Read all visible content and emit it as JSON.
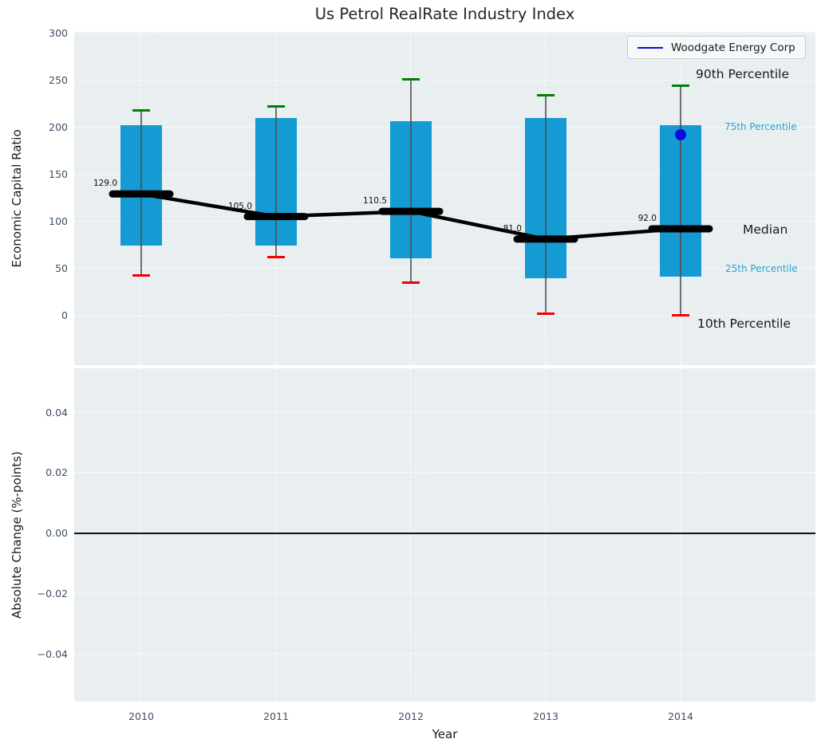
{
  "chart_data": {
    "type": "box",
    "title": "Us Petrol RealRate Industry Index",
    "xlabel": "Year",
    "categories": [
      "2010",
      "2011",
      "2012",
      "2013",
      "2014"
    ],
    "legend": {
      "label": "Woodgate Energy Corp",
      "line_color": "#0a0ae0",
      "position": "upper right"
    },
    "top_panel": {
      "ylabel": "Economic Capital Ratio",
      "yticks": [
        "300",
        "250",
        "200",
        "150",
        "100",
        "50",
        "0"
      ],
      "ytick_values": [
        300,
        250,
        200,
        150,
        100,
        50,
        0
      ],
      "ylim": [
        -53,
        301
      ],
      "grid": true,
      "boxes": [
        {
          "year": "2010",
          "p10": 42,
          "p25": 74,
          "median": 129.0,
          "p75": 202,
          "p90": 218
        },
        {
          "year": "2011",
          "p10": 62,
          "p25": 74,
          "median": 105.0,
          "p75": 210,
          "p90": 222
        },
        {
          "year": "2012",
          "p10": 35,
          "p25": 61,
          "median": 110.5,
          "p75": 206,
          "p90": 251
        },
        {
          "year": "2013",
          "p10": 2,
          "p25": 39,
          "median": 81.0,
          "p75": 210,
          "p90": 234
        },
        {
          "year": "2014",
          "p10": 0,
          "p25": 41,
          "median": 92.0,
          "p75": 202,
          "p90": 244
        }
      ],
      "median_labels": [
        "129.0",
        "105.0",
        "110.5",
        "81.0",
        "92.0"
      ],
      "company_point": {
        "series": "Woodgate Energy Corp",
        "year": "2014",
        "value": 192
      },
      "annotations": [
        {
          "text": "90th Percentile",
          "value": 255,
          "color": "#1a1a1a",
          "size": 15.5,
          "x_offset": 779
        },
        {
          "text": "75th Percentile",
          "value": 199,
          "color": "#29a3cf",
          "size": 12,
          "x_offset": 815
        },
        {
          "text": "Median",
          "value": 90,
          "color": "#1a1a1a",
          "size": 15.5,
          "x_offset": 838
        },
        {
          "text": "25th Percentile",
          "value": 48,
          "color": "#29a3cf",
          "size": 12,
          "x_offset": 816
        },
        {
          "text": "10th Percentile",
          "value": -10,
          "color": "#1a1a1a",
          "size": 15.5,
          "x_offset": 781
        }
      ]
    },
    "bottom_panel": {
      "ylabel": "Absolute Change (%-points)",
      "yticks": [
        "0.04",
        "0.02",
        "0.00",
        "−0.02",
        "−0.04"
      ],
      "ytick_values": [
        0.04,
        0.02,
        0.0,
        -0.02,
        -0.04
      ],
      "ylim": [
        -0.0556,
        0.0545
      ],
      "zero_line": 0.0,
      "grid": true
    },
    "colors": {
      "box_fill": "#159bd4",
      "whisker": "#4d4d4d",
      "cap_top": "#008000",
      "cap_bottom": "#f40000",
      "median_line": "#000000",
      "company_marker": "#0a0ae0",
      "percentile_text": "#29a3cf",
      "axes_background": "#e9eef0",
      "gridline": "#ffffff",
      "tick_text": "#3f4e63"
    }
  }
}
